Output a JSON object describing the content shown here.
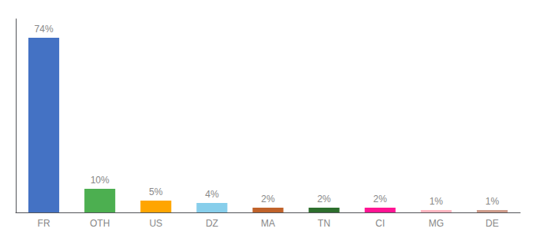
{
  "chart_data": {
    "type": "bar",
    "categories": [
      "FR",
      "OTH",
      "US",
      "DZ",
      "MA",
      "TN",
      "CI",
      "MG",
      "DE"
    ],
    "values": [
      74,
      10,
      5,
      4,
      2,
      2,
      2,
      1,
      1
    ],
    "value_labels": [
      "74%",
      "10%",
      "5%",
      "4%",
      "2%",
      "2%",
      "2%",
      "1%",
      "1%"
    ],
    "colors": [
      "#4472c4",
      "#4caf50",
      "#ffa500",
      "#87ceeb",
      "#c0622a",
      "#2d6e2d",
      "#ff1493",
      "#ffb6c1",
      "#cd9b8a"
    ],
    "ylim": [
      0,
      82
    ],
    "data_labels": true,
    "tick_labels": "x",
    "grid": false
  }
}
